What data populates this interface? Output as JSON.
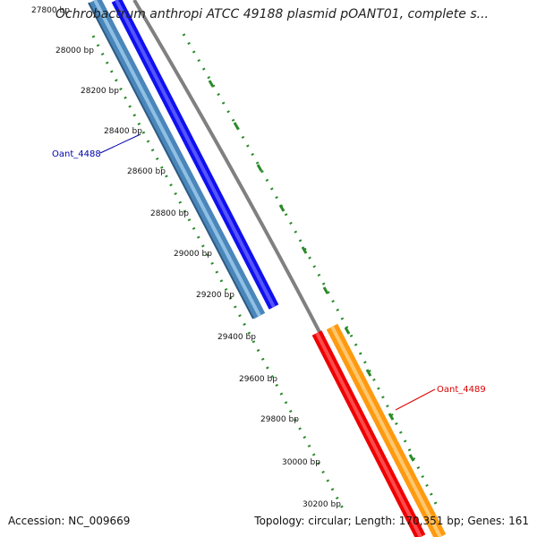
{
  "title": "Ochrobactrum anthropi ATCC 49188 plasmid pOANT01, complete s...",
  "footer": {
    "accession": "Accession: NC_009669",
    "summary": "Topology: circular; Length: 170,351 bp; Genes: 161"
  },
  "ticks": [
    {
      "label": "27800 bp"
    },
    {
      "label": "28000 bp"
    },
    {
      "label": "28200 bp"
    },
    {
      "label": "28400 bp"
    },
    {
      "label": "28600 bp"
    },
    {
      "label": "28800 bp"
    },
    {
      "label": "29000 bp"
    },
    {
      "label": "29200 bp"
    },
    {
      "label": "29400 bp"
    },
    {
      "label": "29600 bp"
    },
    {
      "label": "29800 bp"
    },
    {
      "label": "30000 bp"
    },
    {
      "label": "30200 bp"
    }
  ],
  "genes": [
    {
      "name": "Oant_4488",
      "color": "#0000aa"
    },
    {
      "name": "Oant_4489",
      "color": "#dd0000"
    }
  ],
  "colors": {
    "forward_gene": "#0000ff",
    "forward_cds": "#4f8fc4",
    "reverse_gene": "#ff0000",
    "reverse_cds": "#ff9900",
    "backbone": "#808080",
    "tick": "#2a8a2a"
  }
}
